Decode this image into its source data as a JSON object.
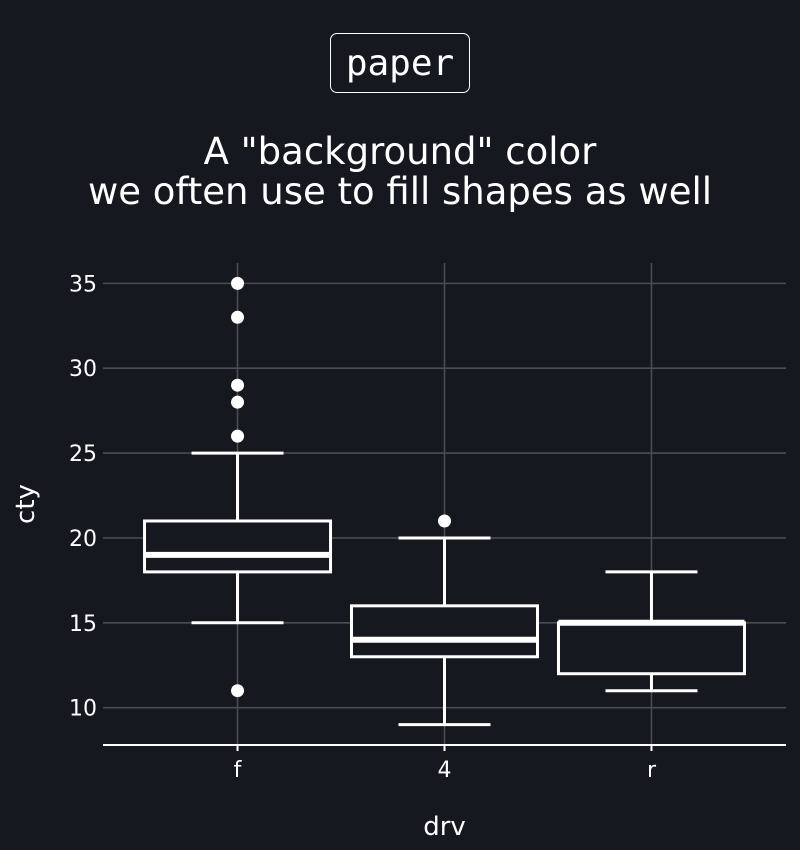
{
  "tag": {
    "label": "paper"
  },
  "title": {
    "line1": "A \"background\" color",
    "line2": "we often use to fill shapes as well"
  },
  "colors": {
    "background": "#15181e",
    "foreground": "#ffffff",
    "grid": "#4a4d52"
  },
  "chart_data": {
    "type": "box",
    "categories": [
      "f",
      "4",
      "r"
    ],
    "xlabel": "drv",
    "ylabel": "cty",
    "ylim": [
      7.8,
      36.2
    ],
    "yticks": [
      10,
      15,
      20,
      25,
      30,
      35
    ],
    "grid": true,
    "boxes": [
      {
        "category": "f",
        "q1": 18,
        "median": 19,
        "q3": 21,
        "whisker_low": 15,
        "whisker_high": 25,
        "outliers": [
          11,
          26,
          28,
          29,
          33,
          35
        ]
      },
      {
        "category": "4",
        "q1": 13,
        "median": 14,
        "q3": 16,
        "whisker_low": 9,
        "whisker_high": 20,
        "outliers": [
          21
        ]
      },
      {
        "category": "r",
        "q1": 12,
        "median": 15,
        "q3": 15,
        "whisker_low": 11,
        "whisker_high": 18,
        "outliers": []
      }
    ]
  }
}
